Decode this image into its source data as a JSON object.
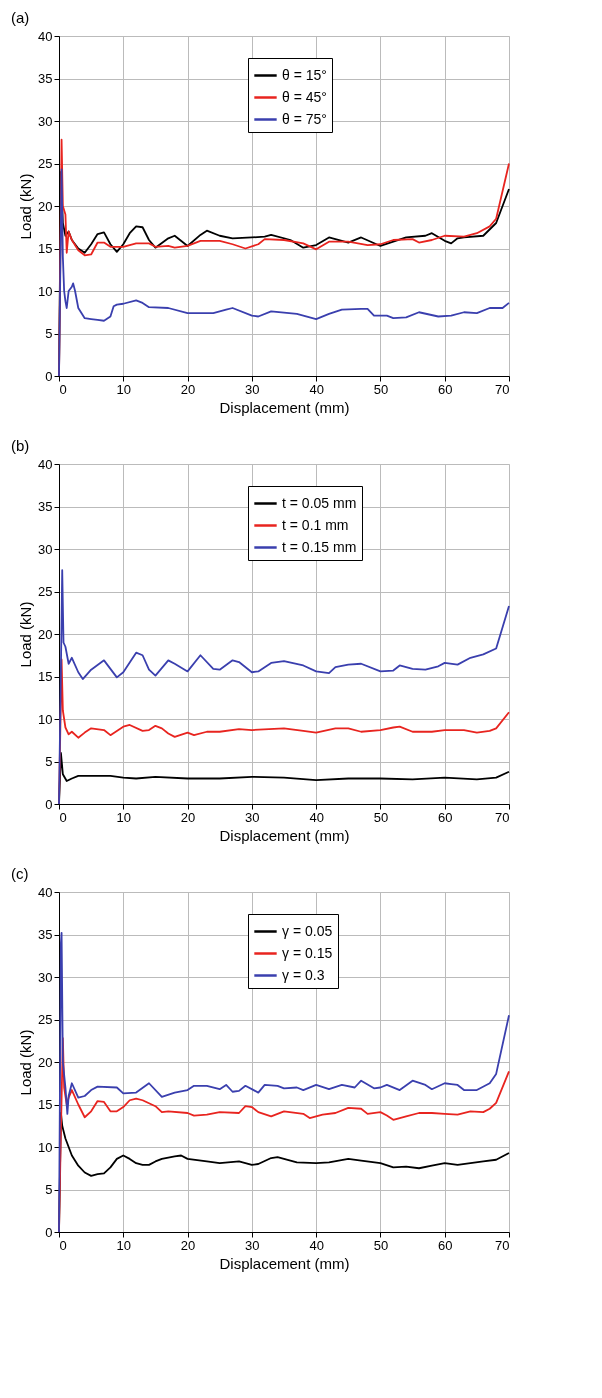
{
  "chart_data": [
    {
      "type": "line",
      "title": "(a)",
      "xlabel": "Displacement (mm)",
      "ylabel": "Load (kN)",
      "xlim": [
        0,
        70
      ],
      "ylim": [
        0,
        40
      ],
      "xticks": [
        0,
        10,
        20,
        30,
        40,
        50,
        60,
        70
      ],
      "yticks": [
        0,
        5,
        10,
        15,
        20,
        25,
        30,
        35,
        40
      ],
      "grid": true,
      "legend": "top",
      "series": [
        {
          "name": "θ = 15°",
          "color": "#000000",
          "x": [
            0,
            0.3,
            0.6,
            1,
            1.5,
            2,
            3,
            4,
            5,
            6,
            7,
            8,
            9,
            10,
            11,
            12,
            13,
            14,
            15,
            17,
            18,
            20,
            22,
            23,
            25,
            27,
            30,
            32,
            33,
            36,
            38,
            40,
            42,
            45,
            47,
            50,
            52,
            54,
            57,
            58,
            60,
            61,
            62,
            63,
            66,
            68,
            70
          ],
          "values": [
            0,
            24,
            18,
            16.5,
            17,
            16,
            15,
            14.5,
            15.5,
            16.7,
            16.9,
            15.5,
            14.6,
            15.5,
            16.8,
            17.6,
            17.5,
            16,
            15.1,
            16.2,
            16.5,
            15.3,
            16.6,
            17.1,
            16.5,
            16.2,
            16.3,
            16.4,
            16.6,
            16,
            15.1,
            15.4,
            16.3,
            15.7,
            16.3,
            15.3,
            15.8,
            16.3,
            16.5,
            16.8,
            15.9,
            15.6,
            16.2,
            16.3,
            16.5,
            18,
            22
          ]
        },
        {
          "name": "θ = 45°",
          "color": "#e8241f",
          "x": [
            0,
            0.4,
            0.6,
            1,
            1.2,
            1.5,
            2,
            3,
            4,
            5,
            6,
            7,
            8,
            10,
            12,
            14,
            15,
            17,
            18,
            20,
            22,
            25,
            27,
            29,
            31,
            32,
            35,
            38,
            40,
            42,
            45,
            48,
            50,
            52,
            55,
            56,
            58,
            60,
            63,
            65,
            67,
            68,
            70
          ],
          "values": [
            0,
            27.8,
            20,
            19,
            14.5,
            17,
            16,
            14.8,
            14.2,
            14.3,
            15.7,
            15.7,
            15.2,
            15.2,
            15.6,
            15.6,
            15.2,
            15.3,
            15.1,
            15.3,
            15.9,
            15.9,
            15.5,
            15,
            15.5,
            16.1,
            16,
            15.6,
            14.9,
            15.8,
            15.8,
            15.4,
            15.5,
            16,
            16.1,
            15.7,
            16,
            16.5,
            16.4,
            16.8,
            17.6,
            18.5,
            25
          ]
        },
        {
          "name": "θ = 75°",
          "color": "#3a3fae",
          "x": [
            0,
            0.4,
            0.6,
            0.8,
            1,
            1.2,
            1.5,
            2,
            2.2,
            2.5,
            3,
            4,
            5,
            6,
            7,
            8,
            8.5,
            9,
            10,
            12,
            13,
            14,
            17,
            20,
            24,
            26,
            27,
            30,
            31,
            33,
            37,
            40,
            42,
            44,
            47,
            48,
            49,
            51,
            52,
            54,
            56,
            59,
            61,
            63,
            65,
            67,
            69,
            70
          ],
          "values": [
            0,
            24.3,
            14,
            10,
            8.8,
            8,
            10,
            10.5,
            10.9,
            10,
            8,
            6.8,
            6.7,
            6.6,
            6.5,
            7,
            8.2,
            8.4,
            8.5,
            8.9,
            8.6,
            8.1,
            8,
            7.4,
            7.4,
            7.8,
            8,
            7.1,
            7,
            7.6,
            7.3,
            6.7,
            7.3,
            7.8,
            7.9,
            7.9,
            7.1,
            7.1,
            6.8,
            6.9,
            7.5,
            7,
            7.1,
            7.5,
            7.4,
            8,
            8,
            8.6
          ]
        }
      ]
    },
    {
      "type": "line",
      "title": "(b)",
      "xlabel": "Displacement (mm)",
      "ylabel": "Load (kN)",
      "xlim": [
        0,
        70
      ],
      "ylim": [
        0,
        40
      ],
      "xticks": [
        0,
        10,
        20,
        30,
        40,
        50,
        60,
        70
      ],
      "yticks": [
        0,
        5,
        10,
        15,
        20,
        25,
        30,
        35,
        40
      ],
      "grid": true,
      "legend": "top",
      "series": [
        {
          "name": "t = 0.05 mm",
          "color": "#000000",
          "x": [
            0,
            0.3,
            0.6,
            1.2,
            2,
            3,
            5,
            8,
            10,
            12,
            15,
            20,
            25,
            30,
            35,
            40,
            45,
            50,
            55,
            60,
            65,
            68,
            70
          ],
          "values": [
            0,
            6,
            3.5,
            2.7,
            3,
            3.3,
            3.3,
            3.3,
            3.1,
            3,
            3.2,
            3,
            3,
            3.2,
            3.1,
            2.8,
            3,
            3,
            2.9,
            3.1,
            2.9,
            3.1,
            3.8
          ]
        },
        {
          "name": "t = 0.1 mm",
          "color": "#e8241f",
          "x": [
            0,
            0.4,
            0.6,
            1,
            1.5,
            2,
            3,
            4,
            5,
            7,
            8,
            9,
            10,
            11,
            13,
            14,
            15,
            16,
            17,
            18,
            20,
            21,
            23,
            25,
            28,
            30,
            35,
            38,
            40,
            43,
            45,
            47,
            50,
            52,
            53,
            55,
            58,
            60,
            63,
            65,
            67,
            68,
            70
          ],
          "values": [
            0,
            17,
            11,
            9,
            8.2,
            8.5,
            7.8,
            8.4,
            8.9,
            8.7,
            8.1,
            8.6,
            9.1,
            9.3,
            8.6,
            8.7,
            9.2,
            8.9,
            8.3,
            7.9,
            8.4,
            8.1,
            8.5,
            8.5,
            8.8,
            8.7,
            8.9,
            8.6,
            8.4,
            8.9,
            8.9,
            8.5,
            8.7,
            9,
            9.1,
            8.5,
            8.5,
            8.7,
            8.7,
            8.4,
            8.6,
            8.9,
            10.8
          ]
        },
        {
          "name": "t = 0.15 mm",
          "color": "#3a3fae",
          "x": [
            0,
            0.3,
            0.5,
            0.7,
            1,
            1.5,
            2,
            3,
            3.7,
            5,
            7,
            9,
            10,
            12,
            13,
            14,
            15,
            17,
            18,
            20,
            22,
            24,
            25,
            27,
            28,
            30,
            31,
            33,
            35,
            38,
            40,
            42,
            43,
            45,
            47,
            50,
            52,
            53,
            55,
            57,
            59,
            60,
            62,
            64,
            66,
            68,
            70
          ],
          "values": [
            0,
            16,
            27.5,
            19,
            18.5,
            16.5,
            17.2,
            15.5,
            14.7,
            15.8,
            16.9,
            14.9,
            15.5,
            17.8,
            17.5,
            15.8,
            15.1,
            16.9,
            16.5,
            15.6,
            17.5,
            15.9,
            15.8,
            16.9,
            16.7,
            15.5,
            15.6,
            16.6,
            16.8,
            16.3,
            15.6,
            15.4,
            16.1,
            16.4,
            16.5,
            15.6,
            15.7,
            16.3,
            15.9,
            15.8,
            16.2,
            16.6,
            16.4,
            17.2,
            17.6,
            18.3,
            23.3
          ]
        }
      ]
    },
    {
      "type": "line",
      "title": "(c)",
      "xlabel": "Displacement (mm)",
      "ylabel": "Load (kN)",
      "xlim": [
        0,
        70
      ],
      "ylim": [
        0,
        40
      ],
      "xticks": [
        0,
        10,
        20,
        30,
        40,
        50,
        60,
        70
      ],
      "yticks": [
        0,
        5,
        10,
        15,
        20,
        25,
        30,
        35,
        40
      ],
      "grid": true,
      "legend": "top",
      "series": [
        {
          "name": "γ = 0.05",
          "color": "#000000",
          "x": [
            0,
            0.3,
            0.5,
            1,
            2,
            3,
            4,
            5,
            6,
            7,
            8,
            9,
            10,
            11,
            12,
            13,
            14,
            15,
            16,
            18,
            19,
            20,
            23,
            25,
            28,
            30,
            31,
            33,
            34,
            37,
            40,
            42,
            45,
            47,
            50,
            52,
            54,
            56,
            58,
            60,
            62,
            64,
            66,
            68,
            70
          ],
          "values": [
            0,
            14,
            12.5,
            11,
            9,
            7.8,
            7,
            6.6,
            6.8,
            6.9,
            7.6,
            8.6,
            9,
            8.6,
            8.1,
            7.9,
            7.9,
            8.3,
            8.6,
            8.9,
            9,
            8.6,
            8.3,
            8.1,
            8.3,
            7.9,
            8,
            8.7,
            8.8,
            8.2,
            8.1,
            8.2,
            8.6,
            8.4,
            8.1,
            7.6,
            7.7,
            7.5,
            7.8,
            8.1,
            7.9,
            8.1,
            8.3,
            8.5,
            9.3
          ]
        },
        {
          "name": "γ = 0.15",
          "color": "#e8241f",
          "x": [
            0,
            0.3,
            0.6,
            0.8,
            1,
            1.2,
            1.5,
            2,
            3,
            4,
            5,
            6,
            7,
            8,
            9,
            10,
            11,
            12,
            13,
            15,
            16,
            17,
            20,
            21,
            23,
            25,
            28,
            29,
            30,
            31,
            33,
            35,
            38,
            39,
            41,
            43,
            45,
            47,
            48,
            50,
            51,
            52,
            54,
            56,
            58,
            60,
            62,
            64,
            66,
            67,
            68,
            70
          ],
          "values": [
            0,
            12,
            22.8,
            17,
            16,
            15,
            15.8,
            16.7,
            15,
            13.5,
            14.2,
            15.4,
            15.3,
            14.2,
            14.2,
            14.7,
            15.5,
            15.7,
            15.5,
            14.8,
            14.1,
            14.2,
            14,
            13.7,
            13.8,
            14.1,
            14,
            14.8,
            14.7,
            14.1,
            13.6,
            14.2,
            13.9,
            13.4,
            13.8,
            14,
            14.6,
            14.5,
            13.9,
            14.1,
            13.7,
            13.2,
            13.6,
            14,
            14,
            13.9,
            13.8,
            14.2,
            14.1,
            14.5,
            15.2,
            18.9
          ]
        },
        {
          "name": "γ = 0.3",
          "color": "#3a3fae",
          "x": [
            0,
            0.3,
            0.4,
            0.6,
            1,
            1.3,
            1.5,
            2,
            3,
            4,
            5,
            6,
            9,
            10,
            12,
            14,
            16,
            18,
            20,
            21,
            23,
            25,
            26,
            27,
            28,
            29,
            31,
            32,
            34,
            35,
            37,
            38,
            40,
            42,
            44,
            46,
            47,
            49,
            50,
            51,
            53,
            55,
            57,
            58,
            60,
            61,
            62,
            63,
            65,
            67,
            68,
            70
          ],
          "values": [
            0,
            34,
            35.2,
            20,
            17,
            13.9,
            16,
            17.5,
            15.8,
            16,
            16.7,
            17.1,
            17,
            16.3,
            16.4,
            17.5,
            15.9,
            16.4,
            16.7,
            17.2,
            17.2,
            16.8,
            17.3,
            16.5,
            16.6,
            17.2,
            16.4,
            17.3,
            17.2,
            16.9,
            17,
            16.7,
            17.3,
            16.8,
            17.3,
            17,
            17.8,
            16.9,
            17,
            17.3,
            16.7,
            17.8,
            17.3,
            16.8,
            17.5,
            17.4,
            17.3,
            16.7,
            16.7,
            17.5,
            18.6,
            25.5
          ]
        }
      ]
    }
  ]
}
